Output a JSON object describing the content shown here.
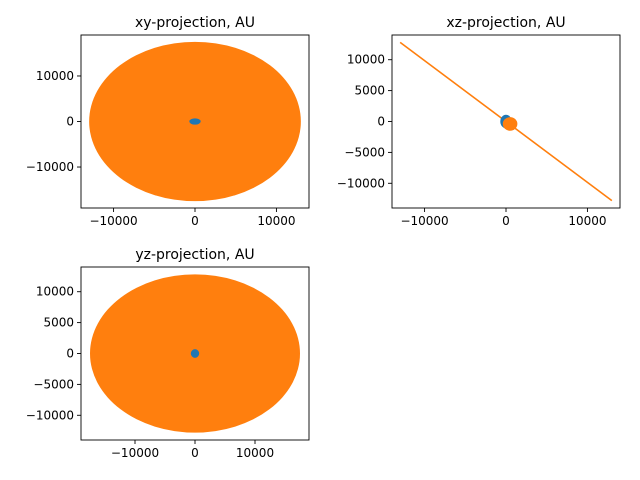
{
  "colors": {
    "series_0": "#1f77b4",
    "series_1": "#ff7f0e"
  },
  "chart_data": [
    {
      "type": "scatter",
      "title": "xy-projection, AU",
      "xlabel": "",
      "ylabel": "",
      "xlim": [
        -14000,
        14000
      ],
      "ylim": [
        -19000,
        19000
      ],
      "xticks": [
        -10000,
        0,
        10000
      ],
      "yticks": [
        -10000,
        0,
        10000
      ],
      "xtick_labels": [
        "−10000",
        "0",
        "10000"
      ],
      "ytick_labels": [
        "−10000",
        "0",
        "10000"
      ],
      "grid": false,
      "series": [
        {
          "shape": "ellipse",
          "cx": 0,
          "cy": 0,
          "rx": 13000,
          "ry": 17500,
          "color": "#ff7f0e"
        },
        {
          "shape": "ellipse",
          "cx": 0,
          "cy": 0,
          "rx": 700,
          "ry": 700,
          "color": "#1f77b4"
        }
      ]
    },
    {
      "type": "line",
      "title": "xz-projection, AU",
      "xlabel": "",
      "ylabel": "",
      "xlim": [
        -14000,
        14000
      ],
      "ylim": [
        -14000,
        14000
      ],
      "xticks": [
        -10000,
        0,
        10000
      ],
      "yticks": [
        -10000,
        -5000,
        0,
        5000,
        10000
      ],
      "xtick_labels": [
        "−10000",
        "0",
        "10000"
      ],
      "ytick_labels": [
        "−10000",
        "−5000",
        "0",
        "5000",
        "10000"
      ],
      "grid": false,
      "series": [
        {
          "shape": "line",
          "x": [
            -13000,
            13000
          ],
          "y": [
            12800,
            -12800
          ],
          "color": "#ff7f0e"
        },
        {
          "shape": "ellipse",
          "cx": 0,
          "cy": 0,
          "rx": 700,
          "ry": 1100,
          "color": "#1f77b4"
        },
        {
          "shape": "ellipse",
          "cx": 500,
          "cy": -400,
          "rx": 900,
          "ry": 1100,
          "color": "#ff7f0e"
        }
      ]
    },
    {
      "type": "scatter",
      "title": "yz-projection, AU",
      "xlabel": "",
      "ylabel": "",
      "xlim": [
        -19000,
        19000
      ],
      "ylim": [
        -14000,
        14000
      ],
      "xticks": [
        -10000,
        0,
        10000
      ],
      "yticks": [
        -10000,
        -5000,
        0,
        5000,
        10000
      ],
      "xtick_labels": [
        "−10000",
        "0",
        "10000"
      ],
      "ytick_labels": [
        "−10000",
        "−5000",
        "0",
        "5000",
        "10000"
      ],
      "grid": false,
      "series": [
        {
          "shape": "ellipse",
          "cx": 0,
          "cy": 0,
          "rx": 17500,
          "ry": 12800,
          "color": "#ff7f0e"
        },
        {
          "shape": "ellipse",
          "cx": 0,
          "cy": 0,
          "rx": 700,
          "ry": 700,
          "color": "#1f77b4"
        }
      ]
    }
  ]
}
